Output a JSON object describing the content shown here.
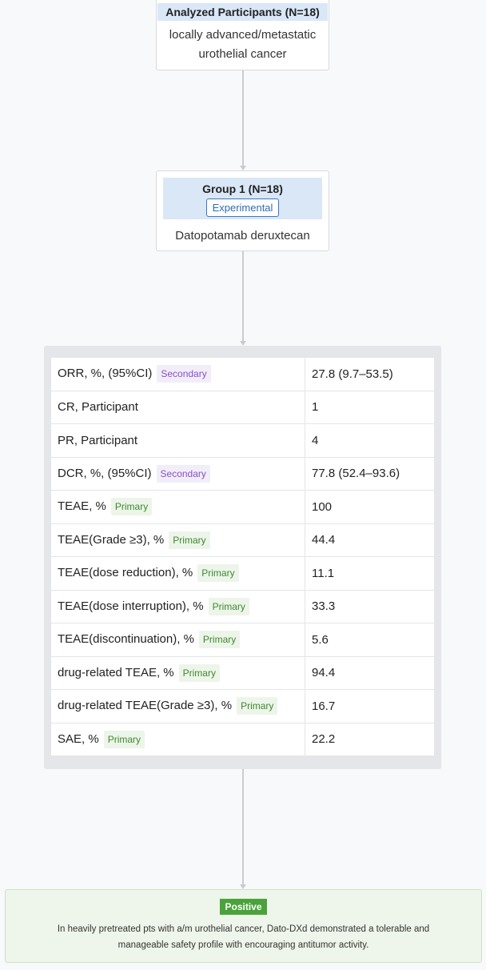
{
  "participants": {
    "header": "Analyzed Participants (N=18)",
    "description": "locally advanced/metastatic urothelial cancer"
  },
  "group": {
    "title": "Group 1 (N=18)",
    "arm_type": "Experimental",
    "intervention": "Datopotamab deruxtecan"
  },
  "results": {
    "rows": [
      {
        "label": "ORR, %, (95%CI)",
        "tag": "Secondary",
        "value": "27.8 (9.7–53.5)"
      },
      {
        "label": "CR, Participant",
        "tag": "",
        "value": "1"
      },
      {
        "label": "PR, Participant",
        "tag": "",
        "value": "4"
      },
      {
        "label": "DCR, %, (95%CI)",
        "tag": "Secondary",
        "value": "77.8 (52.4–93.6)"
      },
      {
        "label": "TEAE, %",
        "tag": "Primary",
        "value": "100"
      },
      {
        "label": "TEAE(Grade ≥3), %",
        "tag": "Primary",
        "value": "44.4"
      },
      {
        "label": "TEAE(dose reduction), %",
        "tag": "Primary",
        "value": "11.1"
      },
      {
        "label": "TEAE(dose interruption), %",
        "tag": "Primary",
        "value": "33.3"
      },
      {
        "label": "TEAE(discontinuation), %",
        "tag": "Primary",
        "value": "5.6"
      },
      {
        "label": "drug-related TEAE, %",
        "tag": "Primary",
        "value": "94.4"
      },
      {
        "label": "drug-related TEAE(Grade ≥3), %",
        "tag": "Primary",
        "value": "16.7"
      },
      {
        "label": "SAE, %",
        "tag": "Primary",
        "value": "22.2"
      }
    ]
  },
  "conclusion": {
    "badge": "Positive",
    "text": "In heavily pretreated pts with a/m urothelial cancer, Dato-DXd demonstrated a tolerable and manageable safety profile with encouraging antitumor activity."
  },
  "colors": {
    "header_bg": "#d9e7f7",
    "secondary_tag": "#8a4fc8",
    "primary_tag": "#3e8a2e",
    "positive_badge": "#4aa33a",
    "experimental_border": "#3b78c3"
  }
}
